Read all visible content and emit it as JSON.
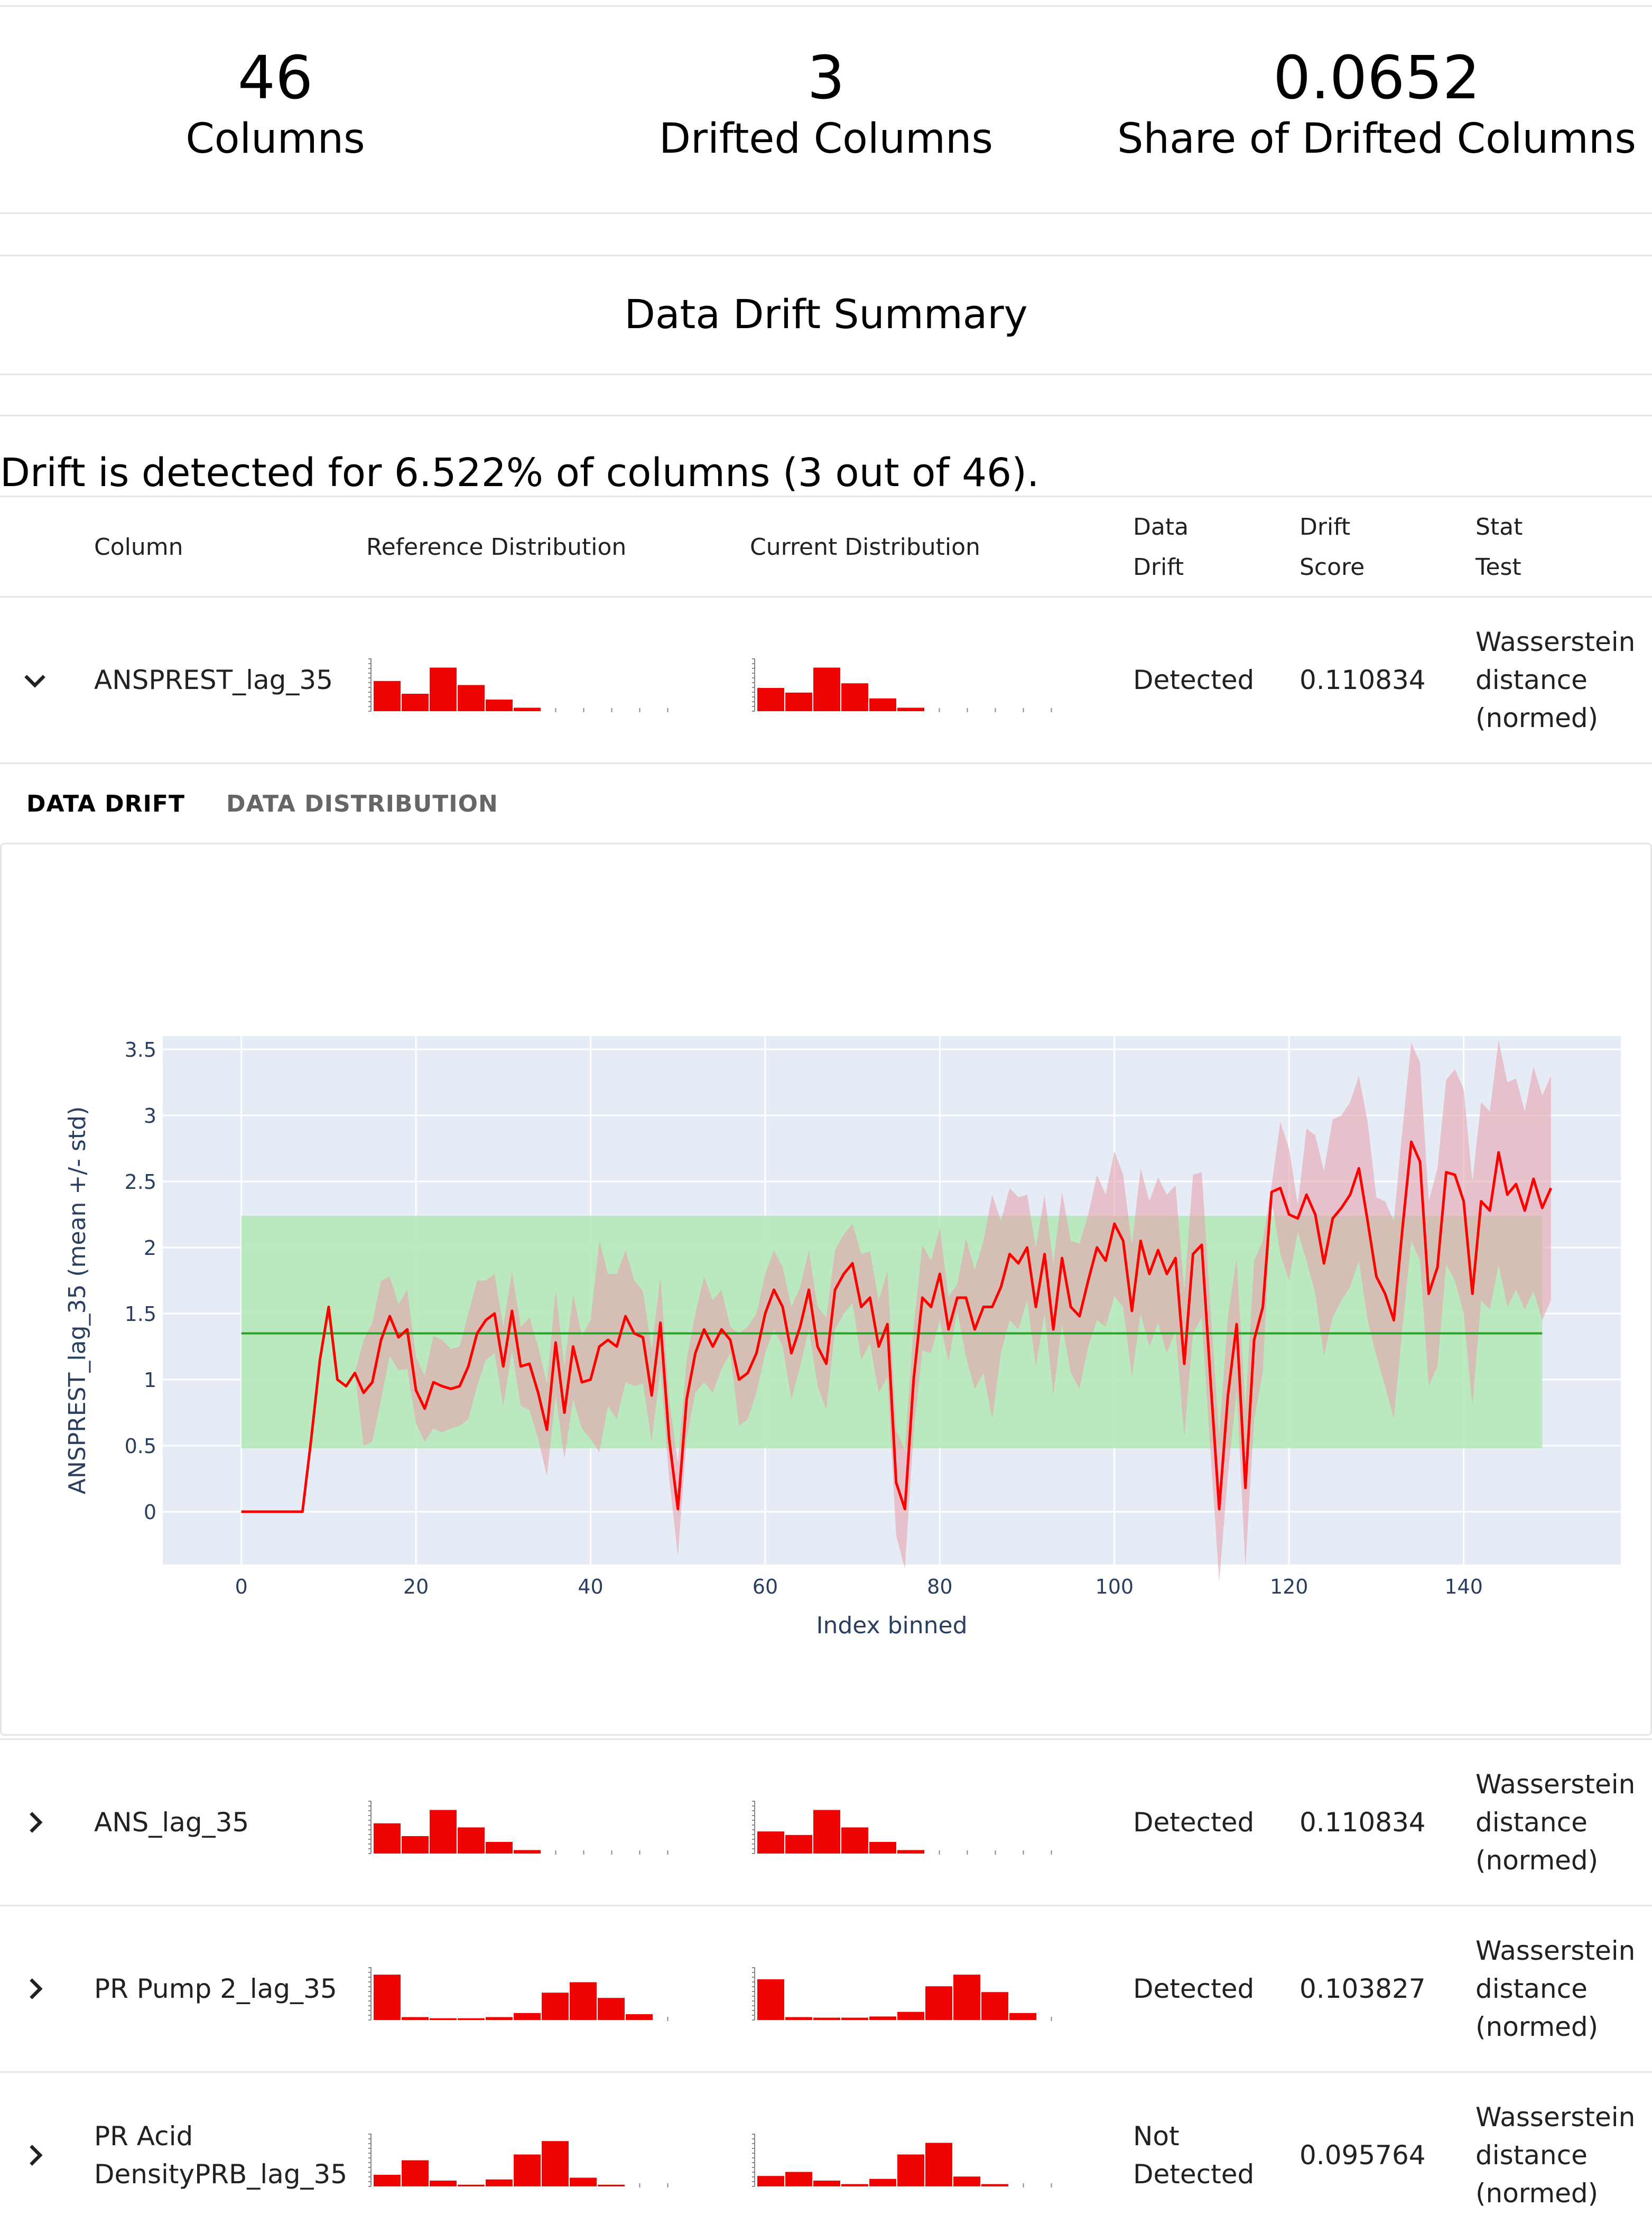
{
  "counters": [
    {
      "value": "46",
      "label": "Columns"
    },
    {
      "value": "3",
      "label": "Drifted Columns"
    },
    {
      "value": "0.0652",
      "label": "Share of Drifted Columns"
    }
  ],
  "summary_title": "Data Drift Summary",
  "drift_message": "Drift is detected for 6.522% of columns (3 out of 46).",
  "table": {
    "headers": {
      "column": "Column",
      "reference": "Reference Distribution",
      "current": "Current Distribution",
      "data_drift_1": "Data",
      "data_drift_2": "Drift",
      "drift_score_1": "Drift",
      "drift_score_2": "Score",
      "stat_test_1": "Stat",
      "stat_test_2": "Test"
    },
    "rows": [
      {
        "name": "ANSPREST_lag_35",
        "drift": "Detected",
        "drift2": "",
        "score": "0.110834",
        "test1": "Wasserstein",
        "test2": "distance",
        "test3": "(normed)",
        "expanded": true,
        "ref_hist": [
          0.52,
          0.3,
          0.75,
          0.45,
          0.2,
          0.06,
          0,
          0,
          0,
          0,
          0
        ],
        "cur_hist": [
          0.4,
          0.32,
          0.75,
          0.48,
          0.22,
          0.06,
          0,
          0,
          0,
          0,
          0
        ]
      },
      {
        "name": "ANS_lag_35",
        "drift": "Detected",
        "drift2": "",
        "score": "0.110834",
        "test1": "Wasserstein",
        "test2": "distance",
        "test3": "(normed)",
        "expanded": false,
        "ref_hist": [
          0.52,
          0.3,
          0.75,
          0.45,
          0.2,
          0.06,
          0,
          0,
          0,
          0,
          0
        ],
        "cur_hist": [
          0.38,
          0.32,
          0.75,
          0.45,
          0.2,
          0.06,
          0,
          0,
          0,
          0,
          0
        ]
      },
      {
        "name": "PR Pump 2_lag_35",
        "drift": "Detected",
        "drift2": "",
        "score": "0.103827",
        "test1": "Wasserstein",
        "test2": "distance",
        "test3": "(normed)",
        "expanded": false,
        "ref_hist": [
          0.78,
          0.05,
          0.03,
          0.03,
          0.05,
          0.12,
          0.47,
          0.65,
          0.38,
          0.1,
          0
        ],
        "cur_hist": [
          0.7,
          0.05,
          0.04,
          0.04,
          0.06,
          0.14,
          0.58,
          0.78,
          0.48,
          0.12,
          0
        ]
      },
      {
        "name": "PR Acid",
        "name2": "DensityPRB_lag_35",
        "drift": "Not",
        "drift2": "Detected",
        "score": "0.095764",
        "test1": "Wasserstein",
        "test2": "distance",
        "test3": "(normed)",
        "expanded": false,
        "ref_hist": [
          0.2,
          0.45,
          0.1,
          0.03,
          0.12,
          0.55,
          0.78,
          0.15,
          0.03,
          0,
          0
        ],
        "cur_hist": [
          0.18,
          0.25,
          0.1,
          0.04,
          0.13,
          0.55,
          0.75,
          0.17,
          0.04,
          0,
          0
        ]
      }
    ]
  },
  "tabs": [
    {
      "label": "DATA DRIFT",
      "active": true
    },
    {
      "label": "DATA DISTRIBUTION",
      "active": false
    }
  ],
  "chart_data": {
    "type": "line",
    "title": "",
    "xlabel": "Index binned",
    "ylabel": "ANSPREST_lag_35 (mean +/- std)",
    "xlim": [
      -9,
      158
    ],
    "ylim": [
      -0.4,
      3.6
    ],
    "x_ticks": [
      0,
      20,
      40,
      60,
      80,
      100,
      120,
      140
    ],
    "y_ticks": [
      0,
      0.5,
      1,
      1.5,
      2,
      2.5,
      3,
      3.5
    ],
    "y_tick_labels": [
      "0",
      "0.5",
      "1",
      "1.5",
      "2",
      "2.5",
      "3",
      "3.5"
    ],
    "reference": {
      "mean": 1.35,
      "lower": 0.48,
      "upper": 2.24,
      "x_start": 0,
      "x_end": 149
    },
    "colors": {
      "current_line": "#ff0000",
      "current_band": "#e6a3ad",
      "reference_line": "#2ca02c",
      "reference_band": "#b6e9b9",
      "plot_bg": "#e5ecf6"
    },
    "series": {
      "mean": [
        [
          0,
          0
        ],
        [
          7,
          0
        ],
        [
          8,
          0.55
        ],
        [
          9,
          1.15
        ],
        [
          10,
          1.55
        ],
        [
          11,
          1.0
        ],
        [
          12,
          0.95
        ],
        [
          13,
          1.05
        ],
        [
          14,
          0.9
        ],
        [
          15,
          0.98
        ],
        [
          16,
          1.3
        ],
        [
          17,
          1.48
        ],
        [
          18,
          1.32
        ],
        [
          19,
          1.38
        ],
        [
          20,
          0.92
        ],
        [
          21,
          0.78
        ],
        [
          22,
          0.98
        ],
        [
          23,
          0.95
        ],
        [
          24,
          0.93
        ],
        [
          25,
          0.95
        ],
        [
          26,
          1.1
        ],
        [
          27,
          1.35
        ],
        [
          28,
          1.45
        ],
        [
          29,
          1.5
        ],
        [
          30,
          1.1
        ],
        [
          31,
          1.52
        ],
        [
          32,
          1.1
        ],
        [
          33,
          1.12
        ],
        [
          34,
          0.9
        ],
        [
          35,
          0.62
        ],
        [
          36,
          1.28
        ],
        [
          37,
          0.75
        ],
        [
          38,
          1.25
        ],
        [
          39,
          0.98
        ],
        [
          40,
          1.0
        ],
        [
          41,
          1.25
        ],
        [
          42,
          1.3
        ],
        [
          43,
          1.25
        ],
        [
          44,
          1.48
        ],
        [
          45,
          1.35
        ],
        [
          46,
          1.32
        ],
        [
          47,
          0.88
        ],
        [
          48,
          1.43
        ],
        [
          49,
          0.55
        ],
        [
          50,
          0.02
        ],
        [
          51,
          0.85
        ],
        [
          52,
          1.2
        ],
        [
          53,
          1.38
        ],
        [
          54,
          1.25
        ],
        [
          55,
          1.38
        ],
        [
          56,
          1.3
        ],
        [
          57,
          1.0
        ],
        [
          58,
          1.05
        ],
        [
          59,
          1.2
        ],
        [
          60,
          1.5
        ],
        [
          61,
          1.68
        ],
        [
          62,
          1.55
        ],
        [
          63,
          1.2
        ],
        [
          64,
          1.4
        ],
        [
          65,
          1.68
        ],
        [
          66,
          1.25
        ],
        [
          67,
          1.12
        ],
        [
          68,
          1.68
        ],
        [
          69,
          1.8
        ],
        [
          70,
          1.88
        ],
        [
          71,
          1.55
        ],
        [
          72,
          1.62
        ],
        [
          73,
          1.25
        ],
        [
          74,
          1.42
        ],
        [
          75,
          0.22
        ],
        [
          76,
          0.02
        ],
        [
          77,
          1.0
        ],
        [
          78,
          1.62
        ],
        [
          79,
          1.55
        ],
        [
          80,
          1.8
        ],
        [
          81,
          1.38
        ],
        [
          82,
          1.62
        ],
        [
          83,
          1.62
        ],
        [
          84,
          1.38
        ],
        [
          85,
          1.55
        ],
        [
          86,
          1.55
        ],
        [
          87,
          1.7
        ],
        [
          88,
          1.95
        ],
        [
          89,
          1.88
        ],
        [
          90,
          2.0
        ],
        [
          91,
          1.55
        ],
        [
          92,
          1.95
        ],
        [
          93,
          1.38
        ],
        [
          94,
          1.92
        ],
        [
          95,
          1.55
        ],
        [
          96,
          1.48
        ],
        [
          97,
          1.75
        ],
        [
          98,
          2.0
        ],
        [
          99,
          1.9
        ],
        [
          100,
          2.18
        ],
        [
          101,
          2.05
        ],
        [
          102,
          1.52
        ],
        [
          103,
          2.05
        ],
        [
          104,
          1.8
        ],
        [
          105,
          1.98
        ],
        [
          106,
          1.8
        ],
        [
          107,
          1.92
        ],
        [
          108,
          1.12
        ],
        [
          109,
          1.95
        ],
        [
          110,
          2.02
        ],
        [
          111,
          1.0
        ],
        [
          112,
          0.02
        ],
        [
          113,
          0.88
        ],
        [
          114,
          1.42
        ],
        [
          115,
          0.18
        ],
        [
          116,
          1.3
        ],
        [
          117,
          1.55
        ],
        [
          118,
          2.42
        ],
        [
          119,
          2.45
        ],
        [
          120,
          2.25
        ],
        [
          121,
          2.22
        ],
        [
          122,
          2.4
        ],
        [
          123,
          2.25
        ],
        [
          124,
          1.88
        ],
        [
          125,
          2.22
        ],
        [
          126,
          2.3
        ],
        [
          127,
          2.4
        ],
        [
          128,
          2.6
        ],
        [
          129,
          2.2
        ],
        [
          130,
          1.78
        ],
        [
          131,
          1.65
        ],
        [
          132,
          1.45
        ],
        [
          133,
          2.15
        ],
        [
          134,
          2.8
        ],
        [
          135,
          2.65
        ],
        [
          136,
          1.65
        ],
        [
          137,
          1.85
        ],
        [
          138,
          2.57
        ],
        [
          139,
          2.55
        ],
        [
          140,
          2.35
        ],
        [
          141,
          1.65
        ],
        [
          142,
          2.35
        ],
        [
          143,
          2.28
        ],
        [
          144,
          2.72
        ],
        [
          145,
          2.4
        ],
        [
          146,
          2.48
        ],
        [
          147,
          2.28
        ],
        [
          148,
          2.52
        ],
        [
          149,
          2.3
        ],
        [
          150,
          2.45
        ]
      ],
      "std_half": [
        0,
        0,
        0,
        0,
        0,
        0,
        0,
        0,
        0.4,
        0.45,
        0.45,
        0.3,
        0.25,
        0.3,
        0.25,
        0.25,
        0.35,
        0.35,
        0.3,
        0.3,
        0.4,
        0.4,
        0.3,
        0.3,
        0.3,
        0.3,
        0.3,
        0.35,
        0.35,
        0.35,
        0.4,
        0.35,
        0.4,
        0.35,
        0.45,
        0.8,
        0.5,
        0.55,
        0.5,
        0.4,
        0.35,
        0.35,
        0.35,
        0.3,
        0.35,
        0.3,
        0.3,
        0.4,
        0.35,
        0.3,
        0.1,
        0.35,
        0.35,
        0.3,
        0.3,
        0.3,
        0.3,
        0.35,
        0.3,
        0.3,
        0.3,
        0.35,
        0.3,
        0.3,
        0.3,
        0.4,
        0.35,
        0.35,
        0.4,
        0.4,
        0.45,
        0.4,
        0.4,
        0.35,
        0.35,
        0.25,
        0.1,
        0.45,
        0.45,
        0.5,
        0.85,
        0.5,
        0.5,
        0.5,
        0.4,
        0.45,
        0.45,
        0.5,
        0.5,
        0.5,
        0.55,
        0.5,
        0.55,
        0.5,
        0.55,
        0.5,
        0.5,
        0.55,
        0.55,
        0.55,
        0.6,
        0.55,
        0.55,
        0.6,
        0.55,
        0.55,
        0.55,
        0.6,
        0.5,
        0.6,
        0.6,
        0.5,
        0.05,
        0.5,
        0.5,
        0.1,
        0.5,
        0.6,
        0.7,
        0.75,
        0.7,
        0.7,
        0.7,
        0.75,
        0.6,
        0.7,
        0.75,
        0.75,
        0.75,
        0.75,
        0.7,
        0.75,
        0.7,
        0.8,
        0.85,
        0.85,
        0.75,
        0.75,
        0.85,
        0.85,
        0.8,
        0.75,
        0.85,
        0.85,
        0.85,
        0.85,
        0.8,
        0.8,
        0.8,
        0.8,
        0.8
      ]
    }
  }
}
